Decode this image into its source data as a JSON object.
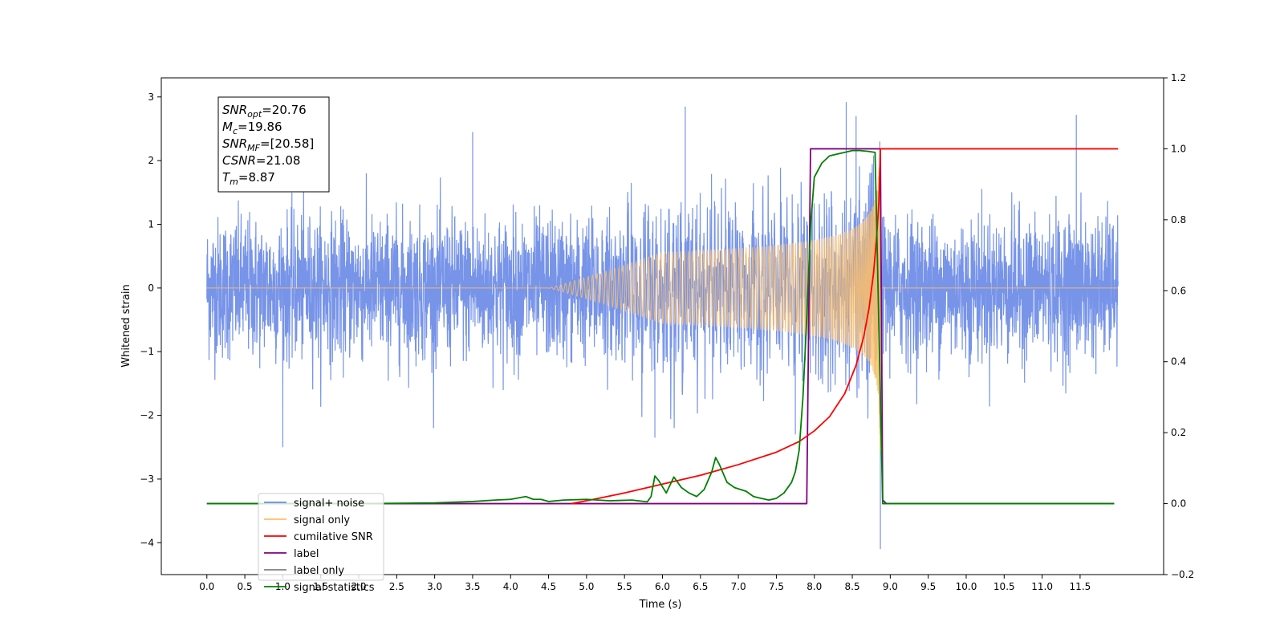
{
  "chart_data": {
    "type": "line",
    "xlabel": "Time (s)",
    "ylabel_left": "Whitened strain",
    "xlim": [
      -0.6,
      12.6
    ],
    "ylim_left": [
      -4.5,
      3.3
    ],
    "ylim_right": [
      -0.2,
      1.2
    ],
    "x_ticks": [
      0.0,
      0.5,
      1.0,
      1.5,
      2.0,
      2.5,
      3.0,
      3.5,
      4.0,
      4.5,
      5.0,
      5.5,
      6.0,
      6.5,
      7.0,
      7.5,
      8.0,
      8.5,
      9.0,
      9.5,
      10.0,
      10.5,
      11.0,
      11.5
    ],
    "x_tick_labels": [
      "0.0",
      "0.5",
      "1.0",
      "1.5",
      "2.0",
      "2.5",
      "3.0",
      "3.5",
      "4.0",
      "4.5",
      "5.0",
      "5.5",
      "6.0",
      "6.5",
      "7.0",
      "7.5",
      "8.0",
      "8.5",
      "9.0",
      "9.5",
      "10.0",
      "10.5",
      "11.0",
      "11.5"
    ],
    "y_ticks_left": [
      -4,
      -3,
      -2,
      -1,
      0,
      1,
      2,
      3
    ],
    "y_tick_labels_left": [
      "−4",
      "−3",
      "−2",
      "−1",
      "0",
      "1",
      "2",
      "3"
    ],
    "y_ticks_right": [
      -0.2,
      0.0,
      0.2,
      0.4,
      0.6,
      0.8,
      1.0,
      1.2
    ],
    "y_tick_labels_right": [
      "−0.2",
      "0.0",
      "0.2",
      "0.4",
      "0.6",
      "0.8",
      "1.0",
      "1.2"
    ],
    "grid": false,
    "legend_position": "lower-left",
    "annotation": {
      "lines": [
        {
          "sym": "SNR",
          "sub": "opt",
          "val": "=20.76"
        },
        {
          "sym": "M",
          "sub": "c",
          "val": "=19.86"
        },
        {
          "sym": "SNR",
          "sub": "MF",
          "val": "=[20.58]"
        },
        {
          "sym": "CSNR",
          "sub": "",
          "val": "=21.08"
        },
        {
          "sym": "T",
          "sub": "m",
          "val": "=8.87"
        }
      ]
    },
    "series": [
      {
        "name": "signal+ noise",
        "axis": "left",
        "color": "#6b8be6",
        "x_range": [
          0.0,
          12.0
        ],
        "noise_amplitude_typical": 1.3,
        "spikes": [
          [
            1.0,
            -2.5
          ],
          [
            3.5,
            2.45
          ],
          [
            6.3,
            2.85
          ],
          [
            8.42,
            2.92
          ],
          [
            8.55,
            2.7
          ],
          [
            8.87,
            -4.1
          ],
          [
            11.45,
            2.72
          ],
          [
            5.9,
            -2.35
          ],
          [
            7.75,
            -2.3
          ]
        ]
      },
      {
        "name": "signal only",
        "axis": "left",
        "color": "#ffbf66",
        "chirp_start": 4.5,
        "merger_time": 8.87,
        "peak_amplitude": 2.9
      },
      {
        "name": "cumilative SNR",
        "axis": "right",
        "color": "#ff0000",
        "x": [
          4.8,
          5.0,
          5.5,
          6.0,
          6.5,
          7.0,
          7.5,
          7.8,
          8.0,
          8.2,
          8.4,
          8.55,
          8.65,
          8.72,
          8.78,
          8.82,
          8.85,
          8.87,
          12.0
        ],
        "values": [
          0.0,
          0.008,
          0.03,
          0.055,
          0.08,
          0.11,
          0.145,
          0.175,
          0.205,
          0.245,
          0.31,
          0.39,
          0.47,
          0.55,
          0.65,
          0.75,
          0.85,
          1.0,
          1.0
        ]
      },
      {
        "name": "label",
        "axis": "right",
        "color": "#800080",
        "x": [
          0.0,
          7.9,
          7.95,
          8.87,
          8.9,
          8.95,
          11.95
        ],
        "values": [
          0.0,
          0.0,
          1.0,
          1.0,
          0.01,
          0.0,
          0.0
        ]
      },
      {
        "name": "label only",
        "axis": "right",
        "color": "#808080",
        "x": [],
        "values": []
      },
      {
        "name": "signal statistics",
        "axis": "right",
        "color": "#008000",
        "x": [
          0.0,
          1.0,
          2.0,
          3.0,
          3.5,
          3.8,
          4.0,
          4.2,
          4.3,
          4.4,
          4.5,
          4.7,
          5.0,
          5.3,
          5.6,
          5.8,
          5.85,
          5.9,
          5.95,
          6.05,
          6.15,
          6.25,
          6.35,
          6.45,
          6.55,
          6.65,
          6.7,
          6.75,
          6.85,
          6.95,
          7.1,
          7.2,
          7.3,
          7.4,
          7.5,
          7.6,
          7.7,
          7.75,
          7.8,
          7.85,
          7.9,
          7.95,
          8.0,
          8.1,
          8.2,
          8.3,
          8.4,
          8.5,
          8.6,
          8.7,
          8.8,
          8.85,
          8.9,
          9.0,
          10.0,
          11.0,
          11.95
        ],
        "values": [
          0.0,
          0.0,
          0.0,
          0.002,
          0.006,
          0.01,
          0.012,
          0.02,
          0.012,
          0.012,
          0.006,
          0.01,
          0.012,
          0.008,
          0.01,
          0.005,
          0.02,
          0.078,
          0.065,
          0.03,
          0.075,
          0.045,
          0.03,
          0.02,
          0.04,
          0.09,
          0.13,
          0.11,
          0.06,
          0.045,
          0.035,
          0.02,
          0.015,
          0.01,
          0.015,
          0.03,
          0.06,
          0.09,
          0.15,
          0.3,
          0.52,
          0.78,
          0.92,
          0.96,
          0.98,
          0.985,
          0.99,
          0.995,
          0.995,
          0.993,
          0.99,
          0.5,
          0.0,
          0.0,
          0.0,
          0.0,
          0.0
        ]
      }
    ]
  }
}
